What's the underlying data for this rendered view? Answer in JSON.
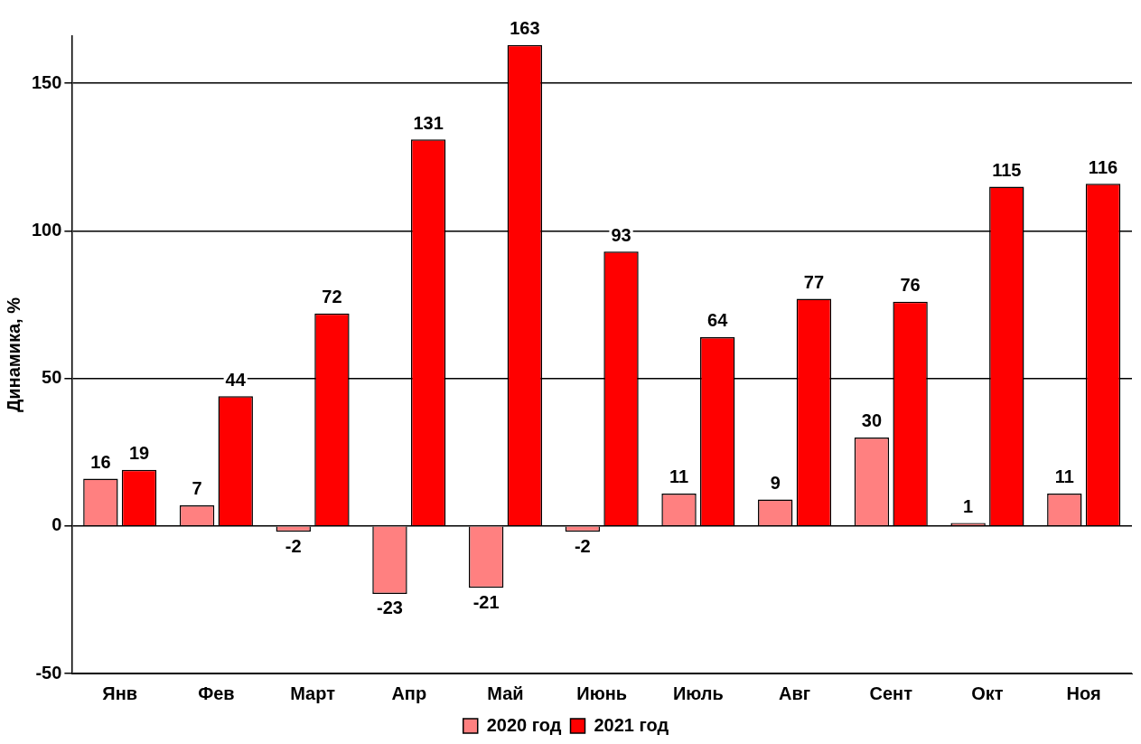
{
  "chart_data": {
    "type": "bar",
    "ylabel": "Динамика, %",
    "categories": [
      "Янв",
      "Фев",
      "Март",
      "Апр",
      "Май",
      "Июнь",
      "Июль",
      "Авг",
      "Сент",
      "Окт",
      "Ноя"
    ],
    "series": [
      {
        "name": "2020 год",
        "color": "#ff8080",
        "values": [
          16,
          7,
          -2,
          -23,
          -21,
          -2,
          11,
          9,
          30,
          1,
          11
        ]
      },
      {
        "name": "2021 год",
        "color": "#ff0000",
        "values": [
          19,
          44,
          72,
          131,
          163,
          93,
          64,
          77,
          76,
          115,
          116
        ]
      }
    ],
    "ylim": [
      -50,
      166
    ],
    "yticks": [
      -50,
      0,
      50,
      100,
      150
    ],
    "grid": "y",
    "legend": "bottom",
    "data_labels": true
  }
}
